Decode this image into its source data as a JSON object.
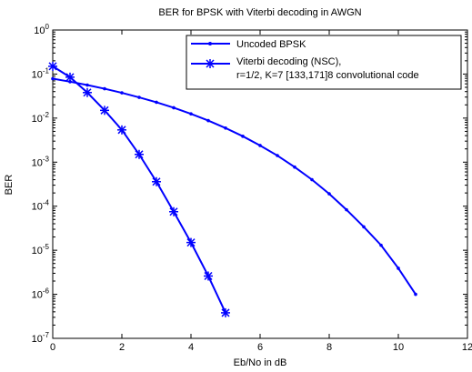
{
  "chart_data": {
    "type": "line",
    "title": "BER for BPSK with Viterbi decoding in AWGN",
    "xlabel": "Eb/No in dB",
    "ylabel": "BER",
    "xlim": [
      0,
      12
    ],
    "ylim": [
      1e-07,
      1
    ],
    "yscale": "log",
    "grid": false,
    "legend_position": "top-right",
    "x_ticks": [
      "0",
      "2",
      "4",
      "6",
      "8",
      "10",
      "12"
    ],
    "y_tick_exponents": [
      "0",
      "-1",
      "-2",
      "-3",
      "-4",
      "-5",
      "-6",
      "-7"
    ],
    "y_tick_base": "10",
    "series": [
      {
        "name": "Uncoded BPSK",
        "color": "#0000ff",
        "marker": "dot",
        "x": [
          0,
          0.5,
          1,
          1.5,
          2,
          2.5,
          3,
          3.5,
          4,
          4.5,
          5,
          5.5,
          6,
          6.5,
          7,
          7.5,
          8,
          8.5,
          9,
          9.5,
          10,
          10.5
        ],
        "y": [
          0.0786,
          0.0671,
          0.0563,
          0.0464,
          0.0375,
          0.0296,
          0.0229,
          0.0172,
          0.0125,
          0.00878,
          0.00595,
          0.00387,
          0.00239,
          0.00141,
          0.000773,
          0.000401,
          0.000191,
          8.3e-05,
          3.4e-05,
          1.3e-05,
          3.9e-06,
          1e-06
        ]
      },
      {
        "name": "Viterbi decoding (NSC),",
        "name_line2": "r=1/2, K=7 [133,171]8 convolutional code",
        "color": "#0000ff",
        "marker": "star",
        "x": [
          0,
          0.5,
          1,
          1.5,
          2,
          2.5,
          3,
          3.5,
          4,
          4.5,
          5
        ],
        "y": [
          0.15,
          0.085,
          0.038,
          0.015,
          0.0054,
          0.0015,
          0.00036,
          7.5e-05,
          1.5e-05,
          2.6e-06,
          3.8e-07
        ]
      }
    ]
  }
}
